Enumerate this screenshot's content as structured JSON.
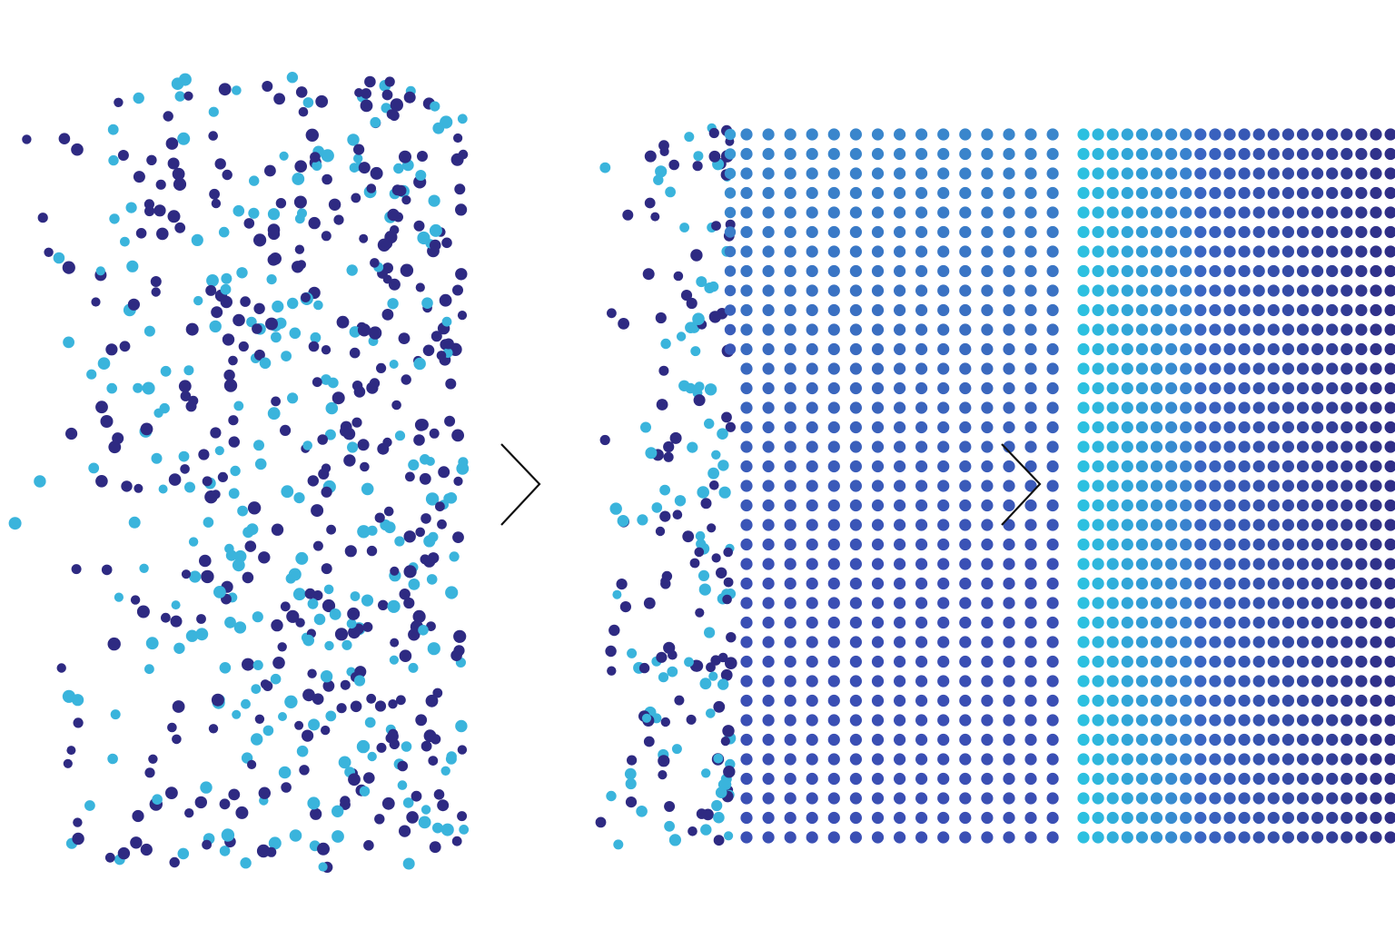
{
  "diagram": {
    "type": "process-flow",
    "stages": [
      {
        "name": "scattered",
        "description_hidden": ""
      },
      {
        "name": "partially-sorted"
      },
      {
        "name": "fully-sorted"
      }
    ],
    "arrow_icon": "chevron-right-icon",
    "colors": {
      "dark": "#2e2a82",
      "light": "#3ab4dc",
      "mid": "#3a4fb4",
      "background": "#ffffff"
    },
    "grid": {
      "rows": 37,
      "columns_stage2": 15,
      "columns_stage3_visible": 23
    }
  }
}
